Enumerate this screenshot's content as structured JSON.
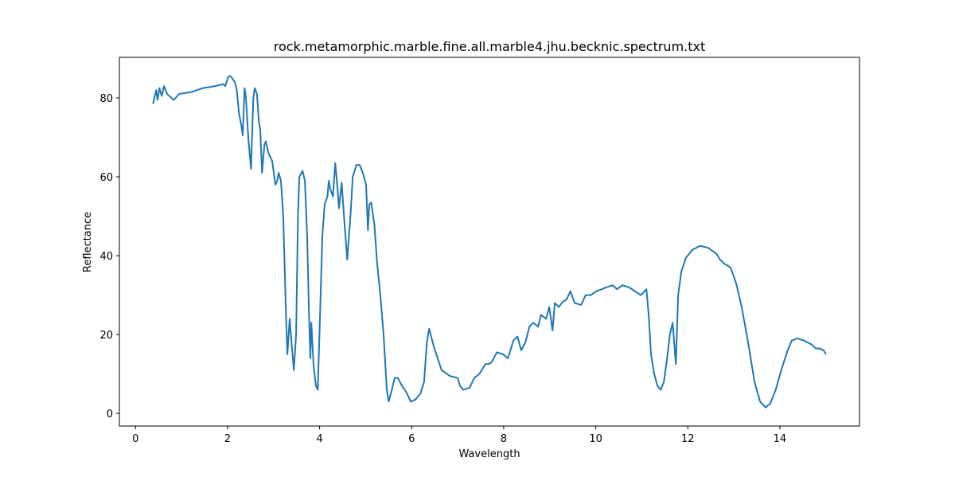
{
  "chart_data": {
    "type": "line",
    "title": "rock.metamorphic.marble.fine.all.marble4.jhu.becknic.spectrum.txt",
    "x_label": "Wavelength",
    "y_label": "Reflectance",
    "xlim": [
      -0.35,
      15.73
    ],
    "ylim": [
      -3.2,
      90.3
    ],
    "xticks": [
      0,
      2,
      4,
      6,
      8,
      10,
      12,
      14
    ],
    "yticks": [
      0,
      20,
      40,
      60,
      80
    ],
    "grid": false,
    "x": [
      0.38,
      0.41,
      0.45,
      0.48,
      0.52,
      0.57,
      0.62,
      0.69,
      0.78,
      0.83,
      0.95,
      1.21,
      1.47,
      1.73,
      1.9,
      1.95,
      2.02,
      2.07,
      2.16,
      2.2,
      2.25,
      2.3,
      2.33,
      2.37,
      2.4,
      2.45,
      2.51,
      2.56,
      2.59,
      2.64,
      2.68,
      2.71,
      2.75,
      2.8,
      2.83,
      2.89,
      2.97,
      3.04,
      3.08,
      3.11,
      3.16,
      3.21,
      3.27,
      3.3,
      3.35,
      3.39,
      3.44,
      3.49,
      3.53,
      3.56,
      3.63,
      3.68,
      3.73,
      3.77,
      3.8,
      3.82,
      3.87,
      3.92,
      3.96,
      4.01,
      4.06,
      4.11,
      4.17,
      4.2,
      4.23,
      4.29,
      4.34,
      4.39,
      4.42,
      4.48,
      4.53,
      4.6,
      4.67,
      4.72,
      4.8,
      4.87,
      4.94,
      5.01,
      5.05,
      5.08,
      5.12,
      5.19,
      5.25,
      5.32,
      5.39,
      5.46,
      5.5,
      5.57,
      5.63,
      5.7,
      5.79,
      5.88,
      5.98,
      6.08,
      6.19,
      6.27,
      6.33,
      6.38,
      6.48,
      6.65,
      6.83,
      7.0,
      7.05,
      7.12,
      7.26,
      7.36,
      7.47,
      7.6,
      7.67,
      7.74,
      7.85,
      7.99,
      8.09,
      8.12,
      8.21,
      8.3,
      8.38,
      8.47,
      8.56,
      8.64,
      8.75,
      8.81,
      8.92,
      8.99,
      9.06,
      9.11,
      9.2,
      9.26,
      9.37,
      9.45,
      9.54,
      9.68,
      9.78,
      9.89,
      10.02,
      10.13,
      10.23,
      10.37,
      10.46,
      10.58,
      10.72,
      10.85,
      10.98,
      11.1,
      11.15,
      11.2,
      11.27,
      11.34,
      11.41,
      11.48,
      11.55,
      11.61,
      11.67,
      11.74,
      11.79,
      11.86,
      11.96,
      12.1,
      12.27,
      12.44,
      12.62,
      12.7,
      12.79,
      12.93,
      13.05,
      13.17,
      13.31,
      13.45,
      13.57,
      13.69,
      13.79,
      13.91,
      14.03,
      14.17,
      14.26,
      14.38,
      14.52,
      14.6,
      14.69,
      14.78,
      14.86,
      14.95,
      15.0
    ],
    "series": [
      {
        "name": "Reflectance",
        "color": "#1f77b4",
        "values": [
          78.5,
          80,
          82,
          79.5,
          82.5,
          80.5,
          83,
          81,
          80,
          79.5,
          81,
          81.5,
          82.5,
          83,
          83.5,
          83,
          85.5,
          85.5,
          84,
          82,
          76,
          73,
          70.5,
          82.5,
          80,
          70,
          62,
          80,
          82.5,
          81,
          74,
          72,
          61,
          68,
          69,
          66,
          64,
          58,
          59,
          61,
          59,
          50,
          25,
          15,
          24,
          18,
          11,
          20,
          50,
          60,
          61.5,
          59,
          45,
          25,
          14,
          23,
          12,
          7,
          6,
          25,
          45,
          53,
          55,
          59,
          57,
          55,
          63.5,
          57,
          52,
          58.5,
          50,
          39,
          50,
          60,
          63,
          63,
          61,
          58,
          46.5,
          53,
          53.5,
          48,
          38,
          30,
          20,
          6,
          3,
          6,
          9,
          9,
          7,
          5.5,
          3,
          3.5,
          5,
          8,
          18,
          21.5,
          17,
          11,
          9.5,
          9,
          7,
          6,
          6.5,
          9,
          10,
          12.5,
          12.5,
          13,
          15.5,
          15,
          14,
          15,
          18.5,
          19.5,
          16,
          18,
          22,
          23,
          22,
          25,
          24,
          27,
          21,
          28,
          27,
          28,
          29,
          31,
          28,
          27.5,
          30,
          30,
          31,
          31.5,
          32,
          32.5,
          31.5,
          32.5,
          32,
          31,
          30,
          31.5,
          25,
          15,
          10,
          7,
          6,
          8,
          14,
          20,
          23,
          12.5,
          30,
          36,
          39.5,
          41.5,
          42.5,
          42,
          40.5,
          39,
          38,
          37,
          33,
          27,
          18,
          8,
          3,
          1.5,
          2.5,
          6,
          11,
          16,
          18.5,
          19,
          18.5,
          18,
          17.5,
          16.5,
          16.5,
          16,
          15
        ]
      }
    ]
  }
}
